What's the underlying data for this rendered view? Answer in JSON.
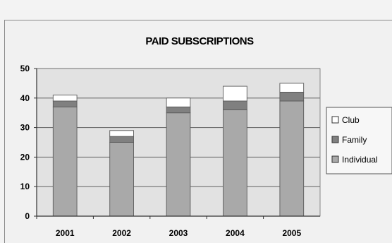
{
  "chart_data": {
    "type": "bar",
    "stacked": true,
    "title": "PAID SUBSCRIPTIONS",
    "categories": [
      "2001",
      "2002",
      "2003",
      "2004",
      "2005"
    ],
    "series": [
      {
        "name": "Individual",
        "values": [
          37,
          25,
          35,
          36,
          39
        ],
        "color": "#a9a9a9"
      },
      {
        "name": "Family",
        "values": [
          2,
          2,
          2,
          3,
          3
        ],
        "color": "#808080"
      },
      {
        "name": "Club",
        "values": [
          2,
          2,
          3,
          5,
          3
        ],
        "color": "#ffffff"
      }
    ],
    "ylim": [
      0,
      50
    ],
    "yticks": [
      "0",
      "10",
      "20",
      "30",
      "40",
      "50"
    ],
    "grid": true,
    "legend_position": "right",
    "legend_order": [
      "Club",
      "Family",
      "Individual"
    ],
    "colors": {
      "plot_background": "#e2e2e2",
      "gridline": "#707070",
      "bar_outline": "#5a5a5a"
    }
  }
}
